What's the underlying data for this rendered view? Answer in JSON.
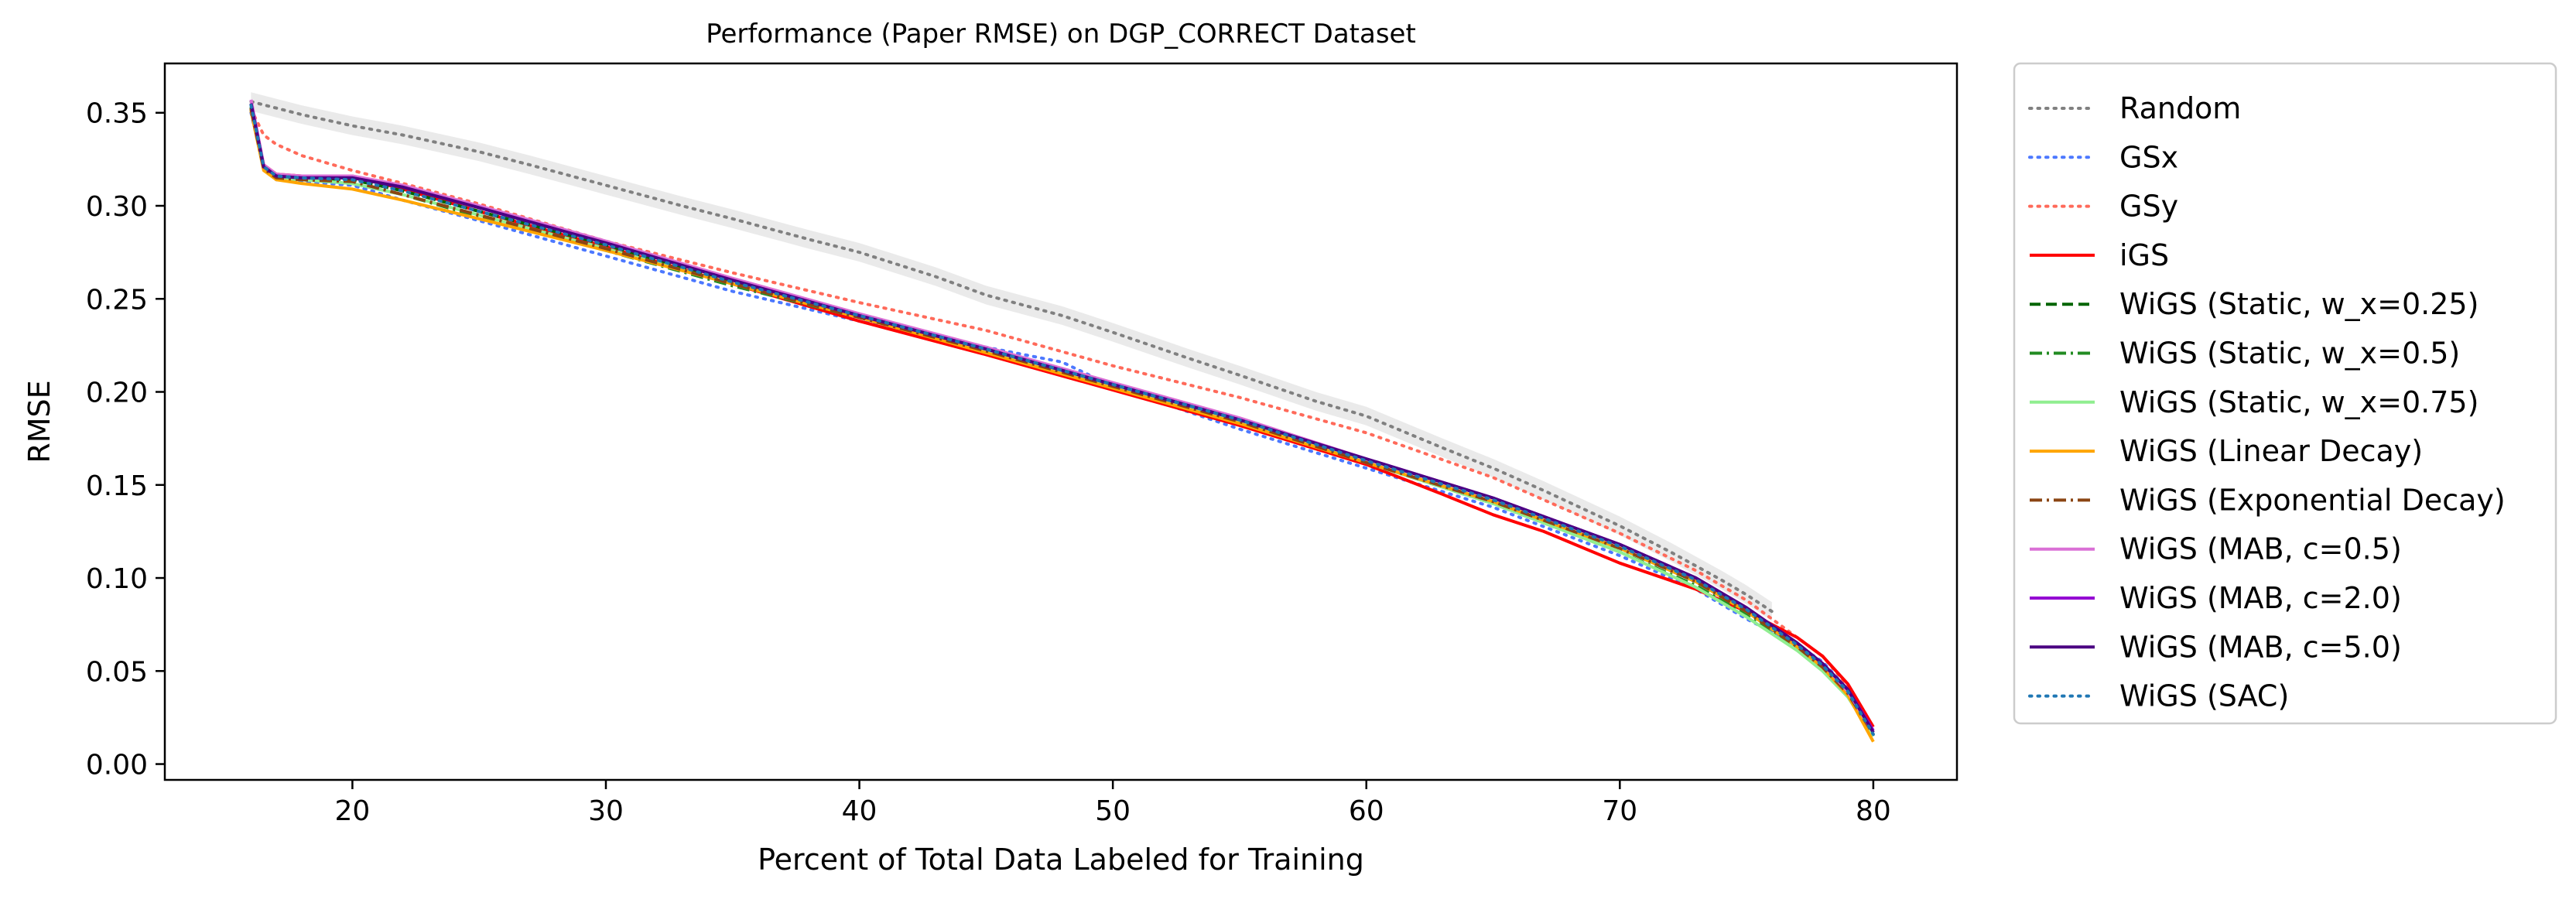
{
  "chart_data": {
    "type": "line",
    "title": "Performance (Paper RMSE) on DGP_CORRECT Dataset",
    "xlabel": "Percent of Total Data Labeled for Training",
    "ylabel": "RMSE",
    "xlim": [
      12.6,
      83.3
    ],
    "ylim": [
      -0.0085,
      0.3765
    ],
    "xticks": [
      20,
      30,
      40,
      50,
      60,
      70,
      80
    ],
    "yticks": [
      0.0,
      0.05,
      0.1,
      0.15,
      0.2,
      0.25,
      0.3,
      0.35
    ],
    "ytick_labels": [
      "0.00",
      "0.05",
      "0.10",
      "0.15",
      "0.20",
      "0.25",
      "0.30",
      "0.35"
    ],
    "grid": false,
    "legend_position": "outside-right",
    "series": [
      {
        "name": "Random",
        "color": "#808080",
        "dash": "dotted",
        "band": true,
        "band_color": "#d9d9d9",
        "x": [
          16,
          18,
          20,
          22,
          25,
          27,
          30,
          33,
          35,
          38,
          40,
          43,
          45,
          48,
          50,
          53,
          55,
          58,
          60,
          63,
          65,
          67,
          70,
          72,
          74,
          75,
          76
        ],
        "y": [
          0.356,
          0.349,
          0.343,
          0.338,
          0.329,
          0.322,
          0.311,
          0.3,
          0.293,
          0.282,
          0.275,
          0.262,
          0.252,
          0.241,
          0.232,
          0.218,
          0.209,
          0.195,
          0.187,
          0.17,
          0.159,
          0.147,
          0.128,
          0.114,
          0.099,
          0.091,
          0.082
        ]
      },
      {
        "name": "GSx",
        "color": "#4c78ff",
        "dash": "dotted",
        "x": [
          16,
          16.5,
          17,
          18,
          20,
          22,
          25,
          30,
          35,
          40,
          45,
          48,
          50,
          55,
          60,
          65,
          70,
          73,
          75,
          77,
          78,
          79,
          80
        ],
        "y": [
          0.35,
          0.32,
          0.314,
          0.313,
          0.311,
          0.303,
          0.292,
          0.273,
          0.254,
          0.238,
          0.224,
          0.216,
          0.203,
          0.18,
          0.159,
          0.138,
          0.112,
          0.094,
          0.078,
          0.064,
          0.055,
          0.04,
          0.015
        ]
      },
      {
        "name": "GSy",
        "color": "#ff6a5a",
        "dash": "dotted",
        "x": [
          16,
          16.5,
          17,
          18,
          20,
          22,
          25,
          30,
          35,
          40,
          45,
          50,
          55,
          60,
          65,
          70,
          73,
          75,
          77,
          78,
          79,
          80
        ],
        "y": [
          0.352,
          0.338,
          0.333,
          0.327,
          0.319,
          0.312,
          0.301,
          0.281,
          0.264,
          0.248,
          0.233,
          0.214,
          0.197,
          0.178,
          0.154,
          0.124,
          0.104,
          0.088,
          0.068,
          0.058,
          0.042,
          0.016
        ]
      },
      {
        "name": "iGS",
        "color": "#ff0000",
        "dash": "solid",
        "x": [
          16,
          16.5,
          17,
          18,
          20,
          22,
          25,
          30,
          35,
          40,
          45,
          50,
          55,
          60,
          63,
          65,
          67,
          70,
          73,
          75,
          77,
          78,
          79,
          80
        ],
        "y": [
          0.352,
          0.322,
          0.317,
          0.316,
          0.316,
          0.309,
          0.297,
          0.278,
          0.258,
          0.238,
          0.22,
          0.201,
          0.182,
          0.161,
          0.145,
          0.134,
          0.125,
          0.108,
          0.094,
          0.082,
          0.068,
          0.058,
          0.043,
          0.02
        ]
      },
      {
        "name": "WiGS (Static, w_x=0.25)",
        "color": "#006400",
        "dash": "dashed",
        "x": [
          16,
          16.5,
          17,
          18,
          20,
          22,
          25,
          30,
          35,
          40,
          45,
          50,
          55,
          60,
          65,
          70,
          73,
          75,
          77,
          78,
          79,
          80
        ],
        "y": [
          0.353,
          0.321,
          0.316,
          0.315,
          0.314,
          0.308,
          0.297,
          0.279,
          0.259,
          0.241,
          0.222,
          0.203,
          0.184,
          0.162,
          0.141,
          0.116,
          0.098,
          0.082,
          0.063,
          0.052,
          0.038,
          0.016
        ]
      },
      {
        "name": "WiGS (Static, w_x=0.5)",
        "color": "#228b22",
        "dash": "dashdot",
        "x": [
          16,
          16.5,
          17,
          18,
          20,
          22,
          25,
          30,
          35,
          40,
          45,
          50,
          55,
          60,
          65,
          70,
          73,
          75,
          77,
          78,
          79,
          80
        ],
        "y": [
          0.352,
          0.32,
          0.315,
          0.314,
          0.312,
          0.306,
          0.294,
          0.276,
          0.257,
          0.24,
          0.222,
          0.203,
          0.184,
          0.162,
          0.14,
          0.114,
          0.096,
          0.08,
          0.062,
          0.051,
          0.037,
          0.015
        ]
      },
      {
        "name": "WiGS (Static, w_x=0.75)",
        "color": "#90ee90",
        "dash": "solid",
        "x": [
          16,
          16.5,
          17,
          18,
          20,
          22,
          25,
          30,
          35,
          40,
          45,
          50,
          55,
          60,
          65,
          70,
          73,
          75,
          77,
          78,
          79,
          80
        ],
        "y": [
          0.352,
          0.321,
          0.315,
          0.314,
          0.312,
          0.306,
          0.295,
          0.277,
          0.258,
          0.24,
          0.222,
          0.203,
          0.184,
          0.162,
          0.14,
          0.114,
          0.095,
          0.079,
          0.061,
          0.05,
          0.036,
          0.015
        ]
      },
      {
        "name": "WiGS (Linear Decay)",
        "color": "#ffa500",
        "dash": "solid",
        "x": [
          16,
          16.5,
          17,
          18,
          20,
          22,
          25,
          30,
          35,
          40,
          45,
          50,
          55,
          60,
          65,
          70,
          73,
          75,
          77,
          78,
          79,
          80
        ],
        "y": [
          0.351,
          0.319,
          0.314,
          0.312,
          0.309,
          0.303,
          0.293,
          0.276,
          0.258,
          0.24,
          0.221,
          0.202,
          0.183,
          0.162,
          0.141,
          0.116,
          0.098,
          0.082,
          0.063,
          0.052,
          0.037,
          0.012
        ]
      },
      {
        "name": "WiGS (Exponential Decay)",
        "color": "#8b4513",
        "dash": "dashdot",
        "x": [
          16,
          16.5,
          17,
          18,
          20,
          22,
          25,
          30,
          35,
          40,
          45,
          50,
          55,
          60,
          65,
          70,
          73,
          75,
          77,
          78,
          79,
          80
        ],
        "y": [
          0.352,
          0.32,
          0.315,
          0.314,
          0.313,
          0.306,
          0.295,
          0.277,
          0.258,
          0.24,
          0.222,
          0.203,
          0.184,
          0.162,
          0.141,
          0.116,
          0.098,
          0.082,
          0.063,
          0.052,
          0.038,
          0.016
        ]
      },
      {
        "name": "WiGS (MAB, c=0.5)",
        "color": "#da70d6",
        "dash": "solid",
        "x": [
          16,
          16.5,
          17,
          18,
          20,
          22,
          25,
          30,
          35,
          40,
          45,
          50,
          55,
          60,
          65,
          70,
          73,
          75,
          77,
          78,
          79,
          80
        ],
        "y": [
          0.357,
          0.322,
          0.317,
          0.316,
          0.316,
          0.311,
          0.3,
          0.281,
          0.261,
          0.242,
          0.224,
          0.205,
          0.186,
          0.164,
          0.143,
          0.118,
          0.1,
          0.084,
          0.065,
          0.054,
          0.039,
          0.017
        ]
      },
      {
        "name": "WiGS (MAB, c=2.0)",
        "color": "#9400d3",
        "dash": "solid",
        "x": [
          16,
          16.5,
          17,
          18,
          20,
          22,
          25,
          30,
          35,
          40,
          45,
          50,
          55,
          60,
          65,
          70,
          73,
          75,
          77,
          78,
          79,
          80
        ],
        "y": [
          0.355,
          0.321,
          0.316,
          0.315,
          0.315,
          0.31,
          0.299,
          0.28,
          0.26,
          0.241,
          0.223,
          0.204,
          0.185,
          0.164,
          0.143,
          0.118,
          0.1,
          0.084,
          0.065,
          0.054,
          0.04,
          0.018
        ]
      },
      {
        "name": "WiGS (MAB, c=5.0)",
        "color": "#4b0082",
        "dash": "solid",
        "x": [
          16,
          16.5,
          17,
          18,
          20,
          22,
          25,
          30,
          35,
          40,
          45,
          50,
          55,
          60,
          65,
          70,
          73,
          75,
          77,
          78,
          79,
          80
        ],
        "y": [
          0.355,
          0.321,
          0.316,
          0.315,
          0.315,
          0.31,
          0.299,
          0.28,
          0.26,
          0.241,
          0.223,
          0.204,
          0.185,
          0.164,
          0.143,
          0.118,
          0.1,
          0.084,
          0.065,
          0.054,
          0.04,
          0.017
        ]
      },
      {
        "name": "WiGS (SAC)",
        "color": "#1f77b4",
        "dash": "dotted",
        "x": [
          16,
          16.5,
          17,
          18,
          20,
          22,
          25,
          30,
          35,
          40,
          45,
          50,
          55,
          60,
          65,
          70,
          73,
          75,
          77,
          78,
          79,
          80
        ],
        "y": [
          0.354,
          0.321,
          0.316,
          0.315,
          0.314,
          0.308,
          0.297,
          0.279,
          0.259,
          0.241,
          0.223,
          0.204,
          0.185,
          0.163,
          0.142,
          0.117,
          0.099,
          0.083,
          0.064,
          0.053,
          0.039,
          0.016
        ]
      }
    ]
  }
}
